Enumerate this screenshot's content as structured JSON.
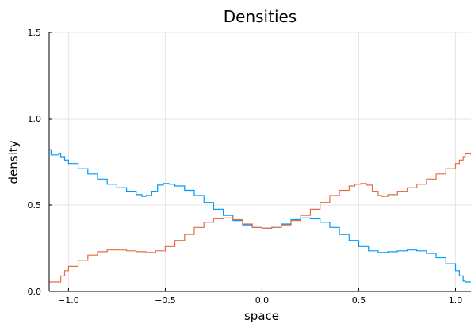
{
  "chart_data": {
    "type": "line",
    "title": "Densities",
    "xlabel": "space",
    "ylabel": "density",
    "xlim": [
      -1.1,
      1.08
    ],
    "ylim": [
      0.0,
      1.5
    ],
    "xticks": [
      -1.0,
      -0.5,
      0.0,
      0.5,
      1.0
    ],
    "xtick_labels": [
      "−1.0",
      "−0.5",
      "0.0",
      "0.5",
      "1.0"
    ],
    "yticks": [
      0.0,
      0.5,
      1.0,
      1.5
    ],
    "ytick_labels": [
      "0.0",
      "0.5",
      "1.0",
      "1.5"
    ],
    "grid": true,
    "legend": "none",
    "step": true,
    "series": [
      {
        "color": "#009AFA",
        "x": [
          -1.1,
          -1.09,
          -1.05,
          -1.04,
          -1.02,
          -1.0,
          -0.95,
          -0.9,
          -0.85,
          -0.8,
          -0.75,
          -0.7,
          -0.65,
          -0.62,
          -0.6,
          -0.57,
          -0.54,
          -0.51,
          -0.48,
          -0.45,
          -0.4,
          -0.35,
          -0.3,
          -0.25,
          -0.2,
          -0.15,
          -0.1,
          -0.05,
          0.0,
          0.05,
          0.1,
          0.15,
          0.2,
          0.25,
          0.3,
          0.35,
          0.4,
          0.45,
          0.5,
          0.55,
          0.6,
          0.65,
          0.7,
          0.75,
          0.8,
          0.85,
          0.9,
          0.95,
          1.0,
          1.02,
          1.04,
          1.05,
          1.08
        ],
        "y": [
          0.82,
          0.79,
          0.8,
          0.78,
          0.76,
          0.74,
          0.71,
          0.68,
          0.65,
          0.62,
          0.6,
          0.58,
          0.56,
          0.55,
          0.555,
          0.58,
          0.615,
          0.625,
          0.62,
          0.61,
          0.585,
          0.555,
          0.515,
          0.475,
          0.44,
          0.41,
          0.385,
          0.37,
          0.365,
          0.37,
          0.39,
          0.415,
          0.425,
          0.42,
          0.4,
          0.37,
          0.33,
          0.295,
          0.26,
          0.235,
          0.225,
          0.23,
          0.235,
          0.24,
          0.235,
          0.22,
          0.195,
          0.16,
          0.12,
          0.09,
          0.06,
          0.055,
          0.055
        ]
      },
      {
        "color": "#E26F46",
        "x": [
          -1.1,
          -1.05,
          -1.04,
          -1.02,
          -1.0,
          -0.95,
          -0.9,
          -0.85,
          -0.8,
          -0.75,
          -0.7,
          -0.65,
          -0.6,
          -0.55,
          -0.5,
          -0.45,
          -0.4,
          -0.35,
          -0.3,
          -0.25,
          -0.2,
          -0.15,
          -0.1,
          -0.05,
          0.0,
          0.05,
          0.1,
          0.15,
          0.2,
          0.25,
          0.3,
          0.35,
          0.4,
          0.45,
          0.48,
          0.51,
          0.54,
          0.57,
          0.6,
          0.62,
          0.65,
          0.7,
          0.75,
          0.8,
          0.85,
          0.9,
          0.95,
          1.0,
          1.02,
          1.04,
          1.05,
          1.08
        ],
        "y": [
          0.055,
          0.055,
          0.09,
          0.12,
          0.145,
          0.18,
          0.21,
          0.23,
          0.24,
          0.24,
          0.235,
          0.23,
          0.225,
          0.235,
          0.26,
          0.295,
          0.33,
          0.37,
          0.4,
          0.42,
          0.425,
          0.415,
          0.39,
          0.37,
          0.365,
          0.37,
          0.385,
          0.41,
          0.44,
          0.475,
          0.515,
          0.555,
          0.585,
          0.61,
          0.62,
          0.625,
          0.615,
          0.58,
          0.555,
          0.55,
          0.56,
          0.58,
          0.6,
          0.62,
          0.65,
          0.68,
          0.71,
          0.74,
          0.76,
          0.78,
          0.8,
          0.79
        ]
      }
    ]
  }
}
